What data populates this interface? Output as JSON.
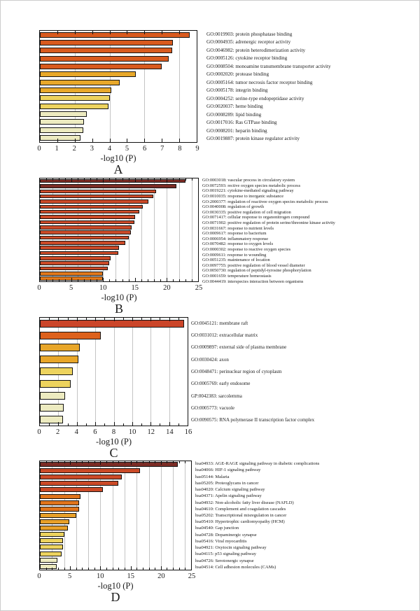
{
  "figure": {
    "background": "#ffffff",
    "text_color": "#1a1a1a",
    "gridline_color": "#c4c4c4",
    "bar_border_color": "#151515"
  },
  "chart_data": [
    {
      "panel": "A",
      "type": "bar",
      "orientation": "horizontal",
      "xlabel": "-log10 (P)",
      "xlim": [
        0,
        9
      ],
      "xticks": [
        0,
        1,
        2,
        3,
        4,
        5,
        6,
        7,
        8,
        9
      ],
      "gridlines": [
        2,
        4,
        6,
        8
      ],
      "minor_tick_step": 1,
      "grid": true,
      "legend_position": "labels-right",
      "categories": [
        "GO:0019903: protein phosphatase binding",
        "GO:0004935: adrenergic receptor activity",
        "GO:0046982: protein heterodimerization activity",
        "GO:0005126: cytokine receptor binding",
        "GO:0008504: monoamine transmembrane transporter activity",
        "GO:0002020: protease binding",
        "GO:0005164: tumor necrosis factor receptor binding",
        "GO:0005178: integrin binding",
        "GO:0004252: serine-type endopeptidase activity",
        "GO:0020037: heme binding",
        "GO:0008289: lipid binding",
        "GO:0017016: Ras GTPase binding",
        "GO:0008201: heparin binding",
        "GO:0019887: protein kinase regulator activity"
      ],
      "values": [
        8.6,
        7.65,
        7.6,
        7.4,
        7.0,
        5.5,
        4.6,
        4.1,
        4.0,
        3.95,
        2.7,
        2.55,
        2.5,
        2.35
      ],
      "colors": [
        "#d95a1e",
        "#d95a1e",
        "#d95a1e",
        "#d95a1e",
        "#d95a1e",
        "#e8a82a",
        "#e8a82a",
        "#e8a82a",
        "#edd35e",
        "#edd35e",
        "#edebc0",
        "#edebc0",
        "#edebc0",
        "#edebc0"
      ]
    },
    {
      "panel": "B",
      "type": "bar",
      "orientation": "horizontal",
      "xlabel": "-log10 (P)",
      "xlim": [
        0,
        25
      ],
      "xticks": [
        0,
        5,
        10,
        15,
        20,
        25
      ],
      "gridlines": [
        2,
        4,
        6,
        8,
        10,
        12,
        14,
        16,
        18,
        20,
        22,
        24
      ],
      "minor_tick_step": 1,
      "grid": true,
      "legend_position": "labels-right",
      "categories": [
        "GO:0003018: vascular process in circulatory system",
        "GO:0072593: rective oxygen species metabolic process",
        "GO:0019221: cytokine-mediated signaling pathway",
        "GO:0010035: response to inorganic substance",
        "GO:2000377: regulation of reactivee oxygen species metabolic process",
        "GO:0040008: regulation of growth",
        "GO:0030335: positive regulation of cell migration",
        "GO:0071417: cellular response to organonitrogen compound",
        "GO:0071902: positive regulation of protein serine/threonine kinase activity",
        "GO:0031667: response to nutrient levels",
        "GO:0009617: response to bacterium",
        "GO:0006954: inflammatory response",
        "GO:0070482: response to oxygen levels",
        "GO:0000302: response to reactive oxygen species",
        "GO:0009611: response to wounding",
        "GO:0051235: maintenance of location",
        "GO:0097755: positive regulation of blood vessel diameter",
        "GO:0050730: regulation of peptidyl-tyrosine phosphorylation",
        "GO:0001659: temperature homeostasis",
        "GO:0044419: interspecies interaction between organisms"
      ],
      "values": [
        23.0,
        21.6,
        18.4,
        17.9,
        17.2,
        16.3,
        15.7,
        15.0,
        14.9,
        14.5,
        14.4,
        14.0,
        13.5,
        12.5,
        12.4,
        11.2,
        11.0,
        10.7,
        10.0,
        10.0
      ],
      "colors": [
        "#7c2c25",
        "#7c2c25",
        "#cb4a28",
        "#cb4a28",
        "#cb4a28",
        "#cb4a28",
        "#cb4a28",
        "#cb4a28",
        "#cb4a28",
        "#cb4a28",
        "#cb4a28",
        "#cb4a28",
        "#cb4a28",
        "#cb4a28",
        "#cb4a28",
        "#cb4a28",
        "#cb4a28",
        "#cb4a28",
        "#e2791c",
        "#e2791c"
      ]
    },
    {
      "panel": "C",
      "type": "bar",
      "orientation": "horizontal",
      "xlabel": "-log10 (P)",
      "xlim": [
        0,
        16
      ],
      "xticks": [
        0,
        2,
        4,
        6,
        8,
        10,
        12,
        14,
        16
      ],
      "gridlines": [
        2,
        4,
        6,
        8,
        10,
        12,
        14
      ],
      "minor_tick_step": 1,
      "grid": true,
      "legend_position": "labels-right",
      "categories": [
        "GO:0045121: membrane raft",
        "GO:0031012: extracellular matrix",
        "GO:0009897: external side of plasma membrane",
        "GO:0030424: axon",
        "GO:0048471: perinuclear region of cytoplasm",
        "GO:0005769: early endosome",
        "GP:0042383: sarcolemma",
        "GO:0005773: vacuole",
        "GO:0090575: RNA polymerase II transcription factor complex"
      ],
      "values": [
        15.6,
        6.6,
        4.3,
        4.2,
        3.6,
        3.3,
        2.7,
        2.6,
        2.5
      ],
      "colors": [
        "#cb4529",
        "#dd611c",
        "#e8a629",
        "#e8a629",
        "#edd35e",
        "#edd35e",
        "#edebc0",
        "#edebc0",
        "#edebc0"
      ]
    },
    {
      "panel": "D",
      "type": "bar",
      "orientation": "horizontal",
      "xlabel": "-log10 (P)",
      "xlim": [
        0,
        25
      ],
      "xticks": [
        0,
        5,
        10,
        15,
        20,
        25
      ],
      "gridlines": [
        2,
        4,
        6,
        8,
        10,
        12,
        14,
        16,
        18,
        20,
        22,
        24
      ],
      "minor_tick_step": 1,
      "grid": true,
      "legend_position": "labels-right",
      "categories": [
        "hsa04933: AGE-RAGE signaling pathway in diabetic complications",
        "hsa04066: HIF-1 signaling pathway",
        "has05144: Malaria",
        "has05205: Proteoglycans in cancer",
        "has04020: Calcium signaling pathway",
        "hsa04371: Apelin signaling pathway",
        "hsa04932: Non-alcoholic fatty liver disease (NAFLD)",
        "hsa04610: Complement and coagulation cascades",
        "hsa05202: Transcriptional misregulation in cancer",
        "hsa05410: Hypertrophic cardiomyopathy (HCM)",
        "hsa04540: Gap junction",
        "hsa04728: Dopaminergic synapse",
        "hsa05416: Viral myocarditis",
        "hsa04921: Oxytocin signaling pathway",
        "hsa04115: p53 signaling pathway",
        "hsa04726: Serotonergic synapse",
        "hsa04514: Cell adhesion molecules (CAMs)"
      ],
      "values": [
        22.8,
        16.5,
        13.5,
        13.0,
        10.4,
        6.7,
        6.5,
        6.5,
        6.0,
        4.9,
        4.6,
        4.0,
        3.8,
        3.8,
        3.6,
        2.9,
        2.75
      ],
      "colors": [
        "#7c2c25",
        "#cb4a27",
        "#cb4a27",
        "#cb4a27",
        "#cb4a27",
        "#e0741c",
        "#e0741c",
        "#e0741c",
        "#e8a029",
        "#e8a029",
        "#e8a029",
        "#edd35e",
        "#edd35e",
        "#edd35e",
        "#edd35e",
        "#edebc0",
        "#edebc0"
      ]
    }
  ]
}
